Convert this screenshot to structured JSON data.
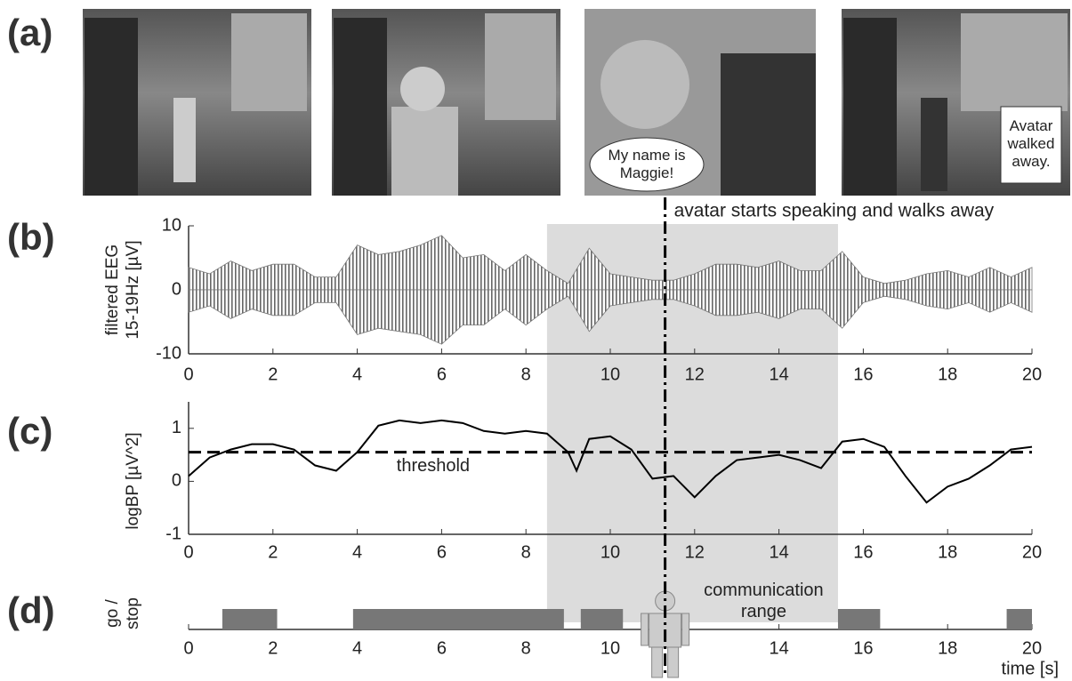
{
  "panel_labels": [
    "(a)",
    "(b)",
    "(c)",
    "(d)"
  ],
  "images": {
    "speech_bubble": "My name is Maggie!",
    "caption": "Avatar walked away."
  },
  "overlay": {
    "shade_x": [
      8.5,
      15.4
    ],
    "shade_label": "communication range",
    "event_x": 11.3,
    "event_label": "avatar starts speaking and walks away"
  },
  "chart_data": [
    {
      "type": "area",
      "ylabel": [
        "filtered EEG",
        "15-19Hz [µV]"
      ],
      "x": [
        0,
        0.5,
        1,
        1.5,
        2,
        2.5,
        3,
        3.5,
        4,
        4.5,
        5,
        5.5,
        6,
        6.5,
        7,
        7.5,
        8,
        8.5,
        9,
        9.5,
        10,
        10.5,
        11,
        11.5,
        12,
        12.5,
        13,
        13.5,
        14,
        14.5,
        15,
        15.5,
        16,
        16.5,
        17,
        17.5,
        18,
        18.5,
        19,
        19.5,
        20
      ],
      "series": [
        {
          "color": "#777777",
          "values": [
            3.5,
            2.5,
            4.5,
            3,
            4,
            4,
            2,
            2,
            7,
            5.5,
            6,
            7,
            8.5,
            5,
            5.5,
            3,
            5.5,
            3,
            1,
            6.5,
            2.5,
            2,
            1.5,
            1.5,
            2.5,
            4,
            4,
            3.5,
            4.5,
            3,
            3,
            6,
            2,
            1,
            1.5,
            2.5,
            3,
            2,
            3.5,
            2,
            3.5
          ]
        },
        {
          "color": "#777777",
          "values": [
            -3.5,
            -2.5,
            -4.5,
            -3,
            -4,
            -4,
            -2,
            -2,
            -7,
            -6,
            -6.5,
            -7,
            -8.5,
            -5.5,
            -5.5,
            -3,
            -5.5,
            -3,
            -1,
            -6.5,
            -2.5,
            -2,
            -1.5,
            -1.5,
            -2.5,
            -4,
            -4,
            -3.5,
            -4.5,
            -3,
            -3,
            -6,
            -2,
            -1,
            -1.5,
            -2.5,
            -3,
            -2,
            -3.5,
            -2,
            -3.5
          ]
        }
      ],
      "xlim": [
        0,
        20
      ],
      "xticks": [
        0,
        2,
        4,
        6,
        8,
        10,
        12,
        14,
        16,
        18,
        20
      ],
      "ylim": [
        -10,
        10
      ],
      "yticks": [
        -10,
        0,
        10
      ]
    },
    {
      "type": "line",
      "ylabel": [
        "logBP [µV^2]"
      ],
      "x": [
        0,
        0.5,
        1,
        1.5,
        2,
        2.5,
        3,
        3.5,
        4,
        4.5,
        5,
        5.5,
        6,
        6.5,
        7,
        7.5,
        8,
        8.5,
        9,
        9.2,
        9.5,
        10,
        10.5,
        11,
        11.5,
        12,
        12.5,
        13,
        13.5,
        14,
        14.5,
        15,
        15.5,
        16,
        16.5,
        17,
        17.5,
        18,
        18.5,
        19,
        19.5,
        20
      ],
      "values": [
        0.1,
        0.45,
        0.6,
        0.7,
        0.7,
        0.6,
        0.3,
        0.2,
        0.55,
        1.05,
        1.15,
        1.1,
        1.15,
        1.1,
        0.95,
        0.9,
        0.95,
        0.9,
        0.55,
        0.2,
        0.8,
        0.85,
        0.6,
        0.05,
        0.1,
        -0.3,
        0.1,
        0.4,
        0.45,
        0.5,
        0.4,
        0.25,
        0.75,
        0.8,
        0.65,
        0.1,
        -0.4,
        -0.1,
        0.05,
        0.3,
        0.6,
        0.65
      ],
      "color": "#000000",
      "threshold": 0.55,
      "threshold_label": "threshold",
      "xlim": [
        0,
        20
      ],
      "xticks": [
        0,
        2,
        4,
        6,
        8,
        10,
        12,
        14,
        16,
        18,
        20
      ],
      "ylim": [
        -1,
        1.5
      ],
      "yticks": [
        -1,
        0,
        1
      ]
    },
    {
      "type": "timeline",
      "ylabel": [
        "go /",
        "stop"
      ],
      "xlabel": "time [s]",
      "color": "#777777",
      "intervals": [
        [
          0.8,
          2.1
        ],
        [
          3.9,
          8.9
        ],
        [
          9.3,
          10.3
        ],
        [
          15.4,
          16.4
        ],
        [
          19.4,
          20
        ]
      ],
      "xlim": [
        0,
        20
      ],
      "xticks": [
        0,
        2,
        4,
        6,
        8,
        10,
        14,
        16,
        18,
        20
      ]
    }
  ]
}
